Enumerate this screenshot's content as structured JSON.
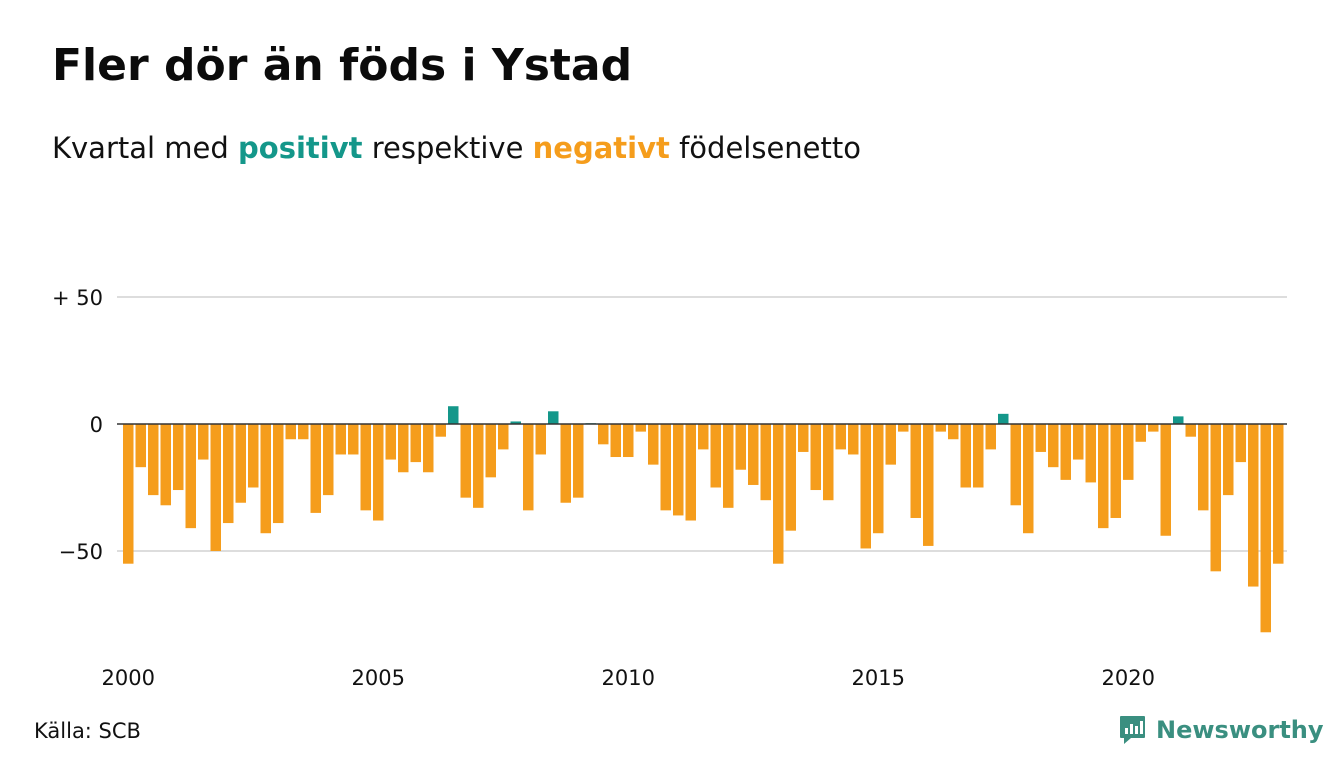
{
  "title": "Fler dör än föds i Ystad",
  "subtitle": {
    "prefix": "Kvartal med",
    "positive_word": "positivt",
    "middle": "respektive",
    "negative_word": "negativt",
    "suffix": "födelsenetto"
  },
  "source": "Källa: SCB",
  "brand": {
    "name": "Newsworthy",
    "icon": "newsworthy-logo-icon"
  },
  "colors": {
    "positive": "#14978a",
    "negative": "#f59d1c",
    "grid": "#dddddd",
    "zero_line": "#333333",
    "text": "#111111"
  },
  "chart_data": {
    "type": "bar",
    "frequency": "quarterly",
    "start_year": 2000,
    "ylim": [
      -82,
      50
    ],
    "y_ticks": [
      {
        "value": 50,
        "label": "+ 50"
      },
      {
        "value": 0,
        "label": "0"
      },
      {
        "value": -50,
        "label": "−50"
      }
    ],
    "x_ticks": [
      {
        "year": 2000,
        "label": "2000"
      },
      {
        "year": 2005,
        "label": "2005"
      },
      {
        "year": 2010,
        "label": "2010"
      },
      {
        "year": 2015,
        "label": "2015"
      },
      {
        "year": 2020,
        "label": "2020"
      }
    ],
    "grid": true,
    "series": [
      {
        "values": [
          -55,
          -17,
          -28,
          -32,
          -26,
          -41,
          -14,
          -50,
          -39,
          -31,
          -25,
          -43,
          -39,
          -6,
          -6,
          -35,
          -28,
          -12,
          -12,
          -34,
          -38,
          -14,
          -19,
          -15,
          -19,
          -5,
          7,
          -29,
          -33,
          -21,
          -10,
          1,
          -34,
          -12,
          5,
          -31,
          -29,
          0,
          -8,
          -13,
          -13,
          -3,
          -16,
          -34,
          -36,
          -38,
          -10,
          -25,
          -33,
          -18,
          -24,
          -30,
          -55,
          -42,
          -11,
          -26,
          -30,
          -10,
          -12,
          -49,
          -43,
          -16,
          -3,
          -37,
          -48,
          -3,
          -6,
          -25,
          -25,
          -10,
          4,
          -32,
          -43,
          -11,
          -17,
          -22,
          -14,
          -23,
          -41,
          -37,
          -22,
          -7,
          -3,
          -44,
          3,
          -5,
          -34,
          -58,
          -28,
          -15,
          -64,
          -82,
          -55
        ]
      }
    ]
  }
}
